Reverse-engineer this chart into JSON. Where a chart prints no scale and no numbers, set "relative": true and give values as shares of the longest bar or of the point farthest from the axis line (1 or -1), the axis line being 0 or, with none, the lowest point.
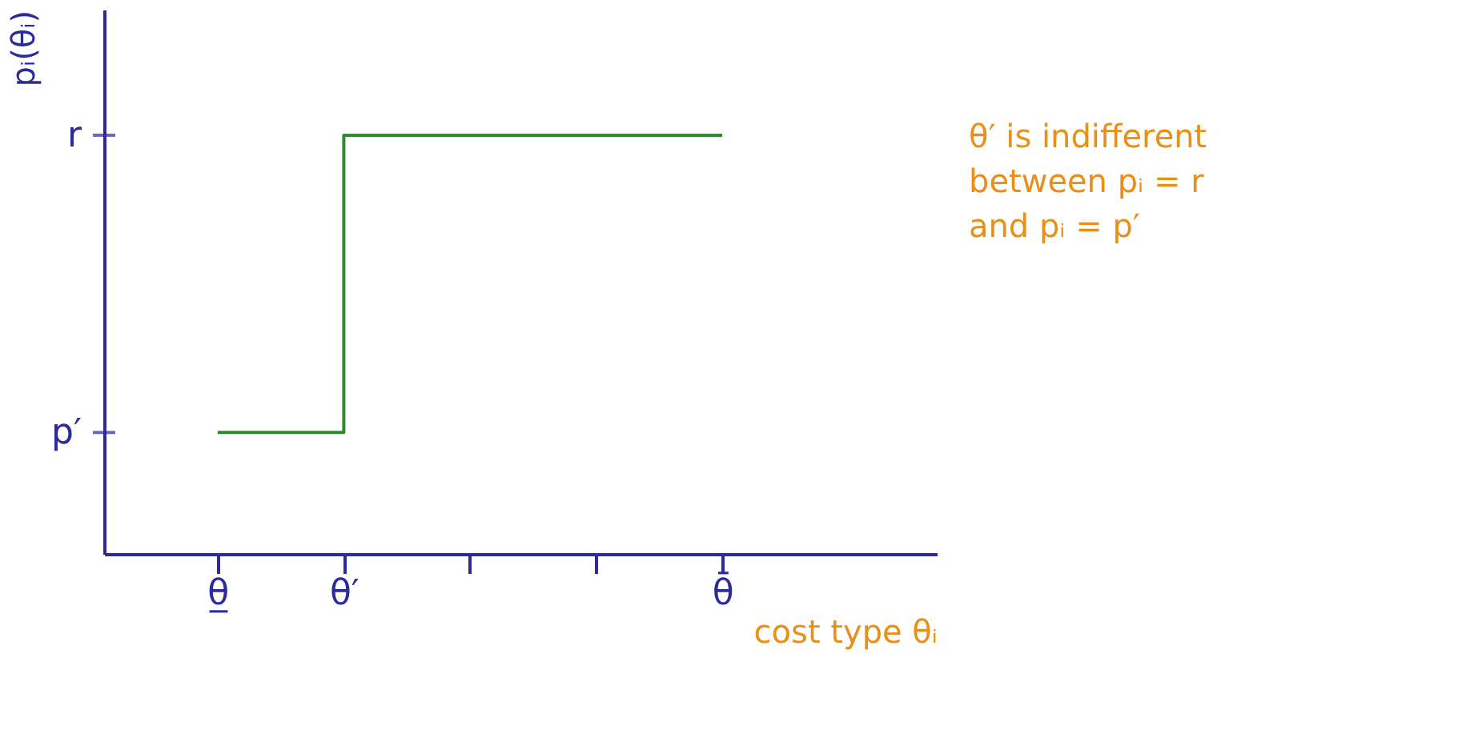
{
  "chart_data": {
    "type": "step",
    "relative": true,
    "ylabel": "pᵢ(θᵢ)",
    "xlabel": "cost type θᵢ",
    "categories": [
      "θ̲",
      "θ′",
      null,
      null,
      "θ̄"
    ],
    "series": [
      {
        "color": "#2e8b2e",
        "values": [
          0.29,
          1,
          1,
          1,
          1
        ]
      }
    ],
    "annotations": [
      "p′",
      "r",
      "θ′ is indifferent",
      "between pᵢ = r",
      "and pᵢ = p′"
    ],
    "grid": false,
    "marker": "none",
    "line_style": "solid"
  }
}
